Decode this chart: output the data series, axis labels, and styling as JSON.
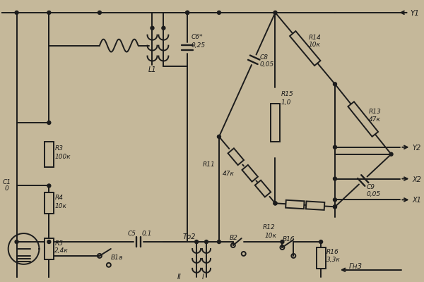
{
  "bg_color": "#c5b89a",
  "line_color": "#1c1c1c",
  "lw": 1.4,
  "figsize": [
    6.0,
    4.0
  ],
  "dpi": 100,
  "components": {
    "R3": {
      "label": "R3",
      "val": "100к"
    },
    "R4": {
      "label": "R4",
      "val": "10к"
    },
    "R5": {
      "label": "R5",
      "val": "2,4к"
    },
    "R11": {
      "label": "R11",
      "val": "47к"
    },
    "R12": {
      "label": "R12",
      "val": "10к"
    },
    "R13": {
      "label": "R13",
      "val": "47к"
    },
    "R14": {
      "label": "R14",
      "val": "10к"
    },
    "R15": {
      "label": "R15",
      "val": "1,0"
    },
    "R16": {
      "label": "R16",
      "val": "3,3к"
    },
    "C5": {
      "label": "C5",
      "val": "0,1"
    },
    "C6": {
      "label": "C6*",
      "val": "0,25"
    },
    "C8": {
      "label": "C8",
      "val": "0,05"
    },
    "C9": {
      "label": "C9",
      "val": "0,05"
    },
    "L1": {
      "label": "L1"
    },
    "Tp2": {
      "label": "Tp2"
    },
    "B1a": {
      "label": "B1a"
    },
    "B1b": {
      "label": "B1б"
    },
    "B2": {
      "label": "B2"
    },
    "Y1": {
      "label": "Y1"
    },
    "Y2": {
      "label": "Y2"
    },
    "X1": {
      "label": "X1"
    },
    "X2": {
      "label": "X2"
    },
    "Gn3": {
      "label": "Гн3"
    },
    "C1": {
      "label": "C1"
    },
    "II": {
      "label": "II"
    },
    "I": {
      "label": "I"
    }
  }
}
